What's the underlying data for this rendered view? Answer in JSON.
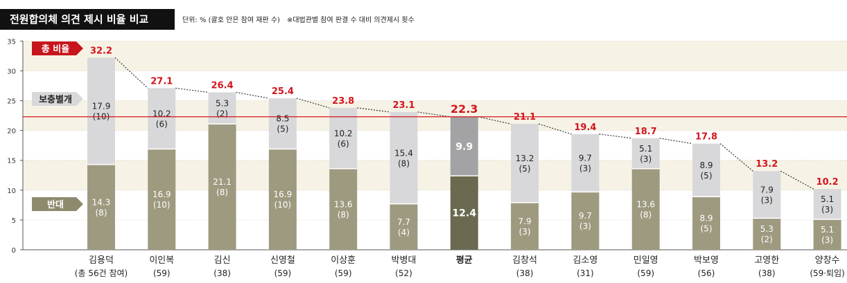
{
  "header": {
    "title": "전원합의체 의견 제시 비율 비교",
    "subtitle": "단위: % (괄호 안은 참여 재판 수)",
    "note": "※대법관별 참여 판결 수 대비 의견제시 횟수"
  },
  "legend": {
    "total": "총 비율",
    "supplement": "보충별개",
    "oppose": "반대"
  },
  "colors": {
    "oppose": "#9e9a80",
    "supplement": "#d8d8da",
    "avg_oppose": "#6b6a50",
    "avg_supplement": "#a3a3a5",
    "total_label": "#d4141c",
    "avg_line": "#d4141c",
    "band": "#f6f3e6",
    "title_bg": "#111111"
  },
  "chart_data": {
    "type": "bar",
    "stacked": true,
    "title": "전원합의체 의견 제시 비율 비교",
    "ylim": [
      0,
      35
    ],
    "yticks": [
      "0",
      "5",
      "10",
      "15",
      "20",
      "25",
      "30",
      "35"
    ],
    "reference_line": 22.3,
    "categories": [
      {
        "name": "김용덕",
        "sub": "(총 56건 참여)",
        "oppose": "14.3",
        "oppose_n": "(8)",
        "supplement": "17.9",
        "supplement_n": "(10)",
        "total": "32.2"
      },
      {
        "name": "이인복",
        "sub": "(59)",
        "oppose": "16.9",
        "oppose_n": "(10)",
        "supplement": "10.2",
        "supplement_n": "(6)",
        "total": "27.1"
      },
      {
        "name": "김신",
        "sub": "(38)",
        "oppose": "21.1",
        "oppose_n": "(8)",
        "supplement": "5.3",
        "supplement_n": "(2)",
        "total": "26.4"
      },
      {
        "name": "신영철",
        "sub": "(59)",
        "oppose": "16.9",
        "oppose_n": "(10)",
        "supplement": "8.5",
        "supplement_n": "(5)",
        "total": "25.4"
      },
      {
        "name": "이상훈",
        "sub": "(59)",
        "oppose": "13.6",
        "oppose_n": "(8)",
        "supplement": "10.2",
        "supplement_n": "(6)",
        "total": "23.8"
      },
      {
        "name": "박병대",
        "sub": "(52)",
        "oppose": "7.7",
        "oppose_n": "(4)",
        "supplement": "15.4",
        "supplement_n": "(8)",
        "total": "23.1"
      },
      {
        "name": "평균",
        "sub": "",
        "oppose": "12.4",
        "oppose_n": "",
        "supplement": "9.9",
        "supplement_n": "",
        "total": "22.3",
        "average": true
      },
      {
        "name": "김창석",
        "sub": "(38)",
        "oppose": "7.9",
        "oppose_n": "(3)",
        "supplement": "13.2",
        "supplement_n": "(5)",
        "total": "21.1"
      },
      {
        "name": "김소영",
        "sub": "(31)",
        "oppose": "9.7",
        "oppose_n": "(3)",
        "supplement": "9.7",
        "supplement_n": "(3)",
        "total": "19.4"
      },
      {
        "name": "민일영",
        "sub": "(59)",
        "oppose": "13.6",
        "oppose_n": "(8)",
        "supplement": "5.1",
        "supplement_n": "(3)",
        "total": "18.7"
      },
      {
        "name": "박보영",
        "sub": "(56)",
        "oppose": "8.9",
        "oppose_n": "(5)",
        "supplement": "8.9",
        "supplement_n": "(5)",
        "total": "17.8"
      },
      {
        "name": "고영한",
        "sub": "(38)",
        "oppose": "5.3",
        "oppose_n": "(2)",
        "supplement": "7.9",
        "supplement_n": "(3)",
        "total": "13.2"
      },
      {
        "name": "양창수",
        "sub": "(59·퇴임)",
        "oppose": "5.1",
        "oppose_n": "(3)",
        "supplement": "5.1",
        "supplement_n": "(3)",
        "total": "10.2"
      }
    ]
  }
}
